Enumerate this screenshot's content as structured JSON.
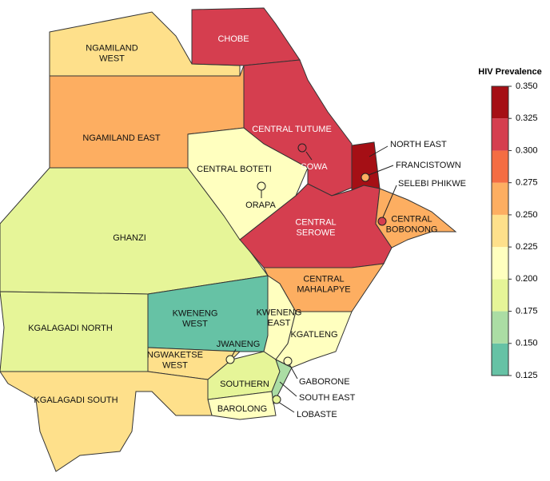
{
  "title": "HIV Prevalence",
  "legend": {
    "ticks": [
      0.125,
      {
        "value": 0.15,
        "label": "0.150"
      },
      0.175,
      {
        "value": 0.2,
        "label": "0.200"
      },
      0.225,
      {
        "value": 0.25,
        "label": "0.250"
      },
      0.275,
      {
        "value": 0.3,
        "label": "0.300"
      },
      0.325,
      {
        "value": 0.35,
        "label": "0.350"
      }
    ],
    "colors": [
      "#66c2a5",
      "#abdda4",
      "#e6f598",
      "#ffffbf",
      "#fee08b",
      "#fdae61",
      "#f46d43",
      "#d53e4f",
      "#a50f15"
    ]
  },
  "regions": [
    {
      "name": [
        "NGAMILAND",
        "WEST"
      ],
      "value": 0.235
    },
    {
      "name": [
        "CHOBE"
      ],
      "value": 0.31
    },
    {
      "name": [
        "NGAMILAND EAST"
      ],
      "value": 0.26
    },
    {
      "name": [
        "GHANZI"
      ],
      "value": 0.19
    },
    {
      "name": [
        "CENTRAL BOTETI"
      ],
      "value": 0.21
    },
    {
      "name": [
        "CENTRAL TUTUME"
      ],
      "value": 0.31
    },
    {
      "name": [
        "NORTH EAST"
      ],
      "value": 0.34
    },
    {
      "name": [
        "CENTRAL",
        "SEROWE"
      ],
      "value": 0.31
    },
    {
      "name": [
        "CENTRAL",
        "BOBONONG"
      ],
      "value": 0.26
    },
    {
      "name": [
        "CENTRAL",
        "MAHALAPYE"
      ],
      "value": 0.26
    },
    {
      "name": [
        "KWENENG",
        "WEST"
      ],
      "value": 0.14
    },
    {
      "name": [
        "KWENENG",
        "EAST"
      ],
      "value": 0.21
    },
    {
      "name": [
        "KGATLENG"
      ],
      "value": 0.21
    },
    {
      "name": [
        "KGALAGADI NORTH"
      ],
      "value": 0.19
    },
    {
      "name": [
        "NGWAKETSE",
        "WEST"
      ],
      "value": 0.235
    },
    {
      "name": [
        "SOUTHERN"
      ],
      "value": 0.19
    },
    {
      "name": [
        "BAROLONG"
      ],
      "value": 0.21
    },
    {
      "name": [
        "KGALAGADI SOUTH"
      ],
      "value": 0.235
    },
    {
      "name": [
        "SOUTH EAST"
      ],
      "value": 0.16
    }
  ],
  "towns": [
    {
      "name": "SOWA",
      "value": 0.31
    },
    {
      "name": "ORAPA",
      "value": 0.21
    },
    {
      "name": "FRANCISTOWN",
      "value": 0.26
    },
    {
      "name": "SELEBI PHIKWE",
      "value": 0.31
    },
    {
      "name": "JWANENG",
      "value": 0.21
    },
    {
      "name": "GABORONE",
      "value": 0.21
    },
    {
      "name": "LOBASTE",
      "value": 0.19
    }
  ]
}
